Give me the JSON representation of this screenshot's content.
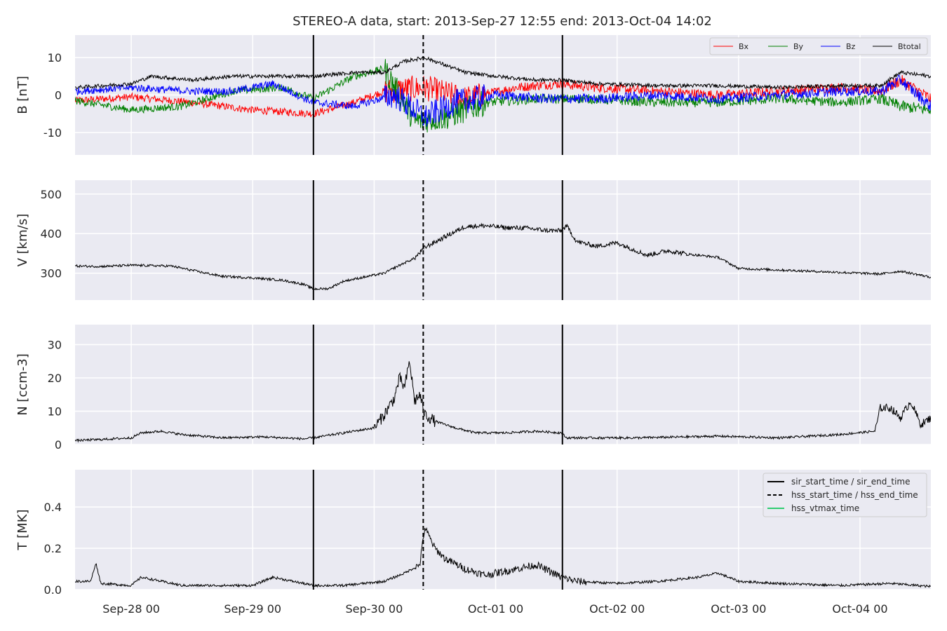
{
  "chart_data": {
    "type": "line",
    "title": "STEREO-A data, start: 2013-Sep-27 12:55  end: 2013-Oct-04 14:02",
    "x_ticks": [
      "Sep-28 00",
      "Sep-29 00",
      "Sep-30 00",
      "Oct-01 00",
      "Oct-02 00",
      "Oct-03 00",
      "Oct-04 00"
    ],
    "x_range_hours": [
      -11.1,
      158.0
    ],
    "events": {
      "sir_start_time": 36.0,
      "hss_start_time": 57.7,
      "sir_end_time": 85.2
    },
    "event_legend": [
      {
        "label": "sir_start_time / sir_end_time",
        "style": "solid",
        "color": "#000000"
      },
      {
        "label": "hss_start_time / hss_end_time",
        "style": "dashed",
        "color": "#000000"
      },
      {
        "label": "hss_vtmax_time",
        "style": "solid",
        "color": "#2ecc71"
      }
    ],
    "panels": [
      {
        "ylabel": "B [nT]",
        "ylim": [
          -16,
          16
        ],
        "yticks": [
          -10,
          0,
          10
        ],
        "series": [
          {
            "name": "Bx",
            "color": "#ff0000",
            "points": [
              [
                -11,
                -1.5
              ],
              [
                0,
                -0.5
              ],
              [
                12,
                -2
              ],
              [
                24,
                -4
              ],
              [
                36,
                -5
              ],
              [
                44,
                -2
              ],
              [
                50,
                1
              ],
              [
                58,
                2
              ],
              [
                66,
                -1
              ],
              [
                76,
                2
              ],
              [
                84,
                3
              ],
              [
                92,
                2
              ],
              [
                104,
                1
              ],
              [
                116,
                0
              ],
              [
                128,
                1
              ],
              [
                140,
                2
              ],
              [
                148,
                1
              ],
              [
                152,
                4
              ],
              [
                158,
                -1
              ]
            ]
          },
          {
            "name": "By",
            "color": "#008000",
            "points": [
              [
                -11,
                -1.5
              ],
              [
                0,
                -4
              ],
              [
                10,
                -3
              ],
              [
                20,
                1
              ],
              [
                30,
                2
              ],
              [
                36,
                -1
              ],
              [
                44,
                5
              ],
              [
                50,
                7
              ],
              [
                56,
                -7
              ],
              [
                62,
                -6
              ],
              [
                70,
                -2
              ],
              [
                80,
                -1
              ],
              [
                90,
                -1
              ],
              [
                104,
                -2
              ],
              [
                116,
                -2
              ],
              [
                128,
                -1
              ],
              [
                140,
                -2
              ],
              [
                148,
                -1
              ],
              [
                152,
                -3
              ],
              [
                158,
                -4
              ]
            ]
          },
          {
            "name": "Bz",
            "color": "#0000ff",
            "points": [
              [
                -11,
                1
              ],
              [
                0,
                2
              ],
              [
                12,
                1
              ],
              [
                20,
                1
              ],
              [
                28,
                3
              ],
              [
                36,
                -2
              ],
              [
                44,
                -3
              ],
              [
                52,
                0
              ],
              [
                58,
                -6
              ],
              [
                64,
                -2
              ],
              [
                72,
                0
              ],
              [
                82,
                -1
              ],
              [
                92,
                -1
              ],
              [
                104,
                0
              ],
              [
                116,
                -1
              ],
              [
                128,
                0
              ],
              [
                140,
                1
              ],
              [
                148,
                1
              ],
              [
                152,
                4
              ],
              [
                158,
                -3
              ]
            ]
          },
          {
            "name": "Btotal",
            "color": "#000000",
            "points": [
              [
                -11,
                2
              ],
              [
                0,
                3
              ],
              [
                4,
                5
              ],
              [
                12,
                4
              ],
              [
                20,
                5
              ],
              [
                30,
                5
              ],
              [
                36,
                5
              ],
              [
                44,
                6
              ],
              [
                50,
                6
              ],
              [
                54,
                9
              ],
              [
                58,
                10
              ],
              [
                62,
                8
              ],
              [
                66,
                6
              ],
              [
                72,
                5
              ],
              [
                80,
                4
              ],
              [
                85,
                4
              ],
              [
                92,
                3
              ],
              [
                104,
                2.5
              ],
              [
                116,
                2.5
              ],
              [
                128,
                2
              ],
              [
                140,
                2.5
              ],
              [
                148,
                2.5
              ],
              [
                152,
                6
              ],
              [
                158,
                5
              ]
            ]
          }
        ]
      },
      {
        "ylabel": "V [km/s]",
        "ylim": [
          232,
          535
        ],
        "yticks": [
          300,
          400,
          500
        ],
        "series": [
          {
            "name": "V",
            "color": "#000000",
            "points": [
              [
                -11,
                318
              ],
              [
                -6,
                317
              ],
              [
                0,
                320
              ],
              [
                8,
                318
              ],
              [
                14,
                302
              ],
              [
                18,
                292
              ],
              [
                24,
                288
              ],
              [
                30,
                282
              ],
              [
                34,
                272
              ],
              [
                36,
                260
              ],
              [
                39,
                261
              ],
              [
                42,
                280
              ],
              [
                46,
                290
              ],
              [
                50,
                300
              ],
              [
                53,
                320
              ],
              [
                56,
                338
              ],
              [
                58,
                365
              ],
              [
                62,
                392
              ],
              [
                66,
                418
              ],
              [
                70,
                420
              ],
              [
                74,
                415
              ],
              [
                78,
                414
              ],
              [
                82,
                408
              ],
              [
                85,
                407
              ],
              [
                86,
                420
              ],
              [
                88,
                380
              ],
              [
                92,
                368
              ],
              [
                96,
                377
              ],
              [
                102,
                345
              ],
              [
                106,
                357
              ],
              [
                110,
                348
              ],
              [
                116,
                340
              ],
              [
                120,
                312
              ],
              [
                124,
                310
              ],
              [
                132,
                306
              ],
              [
                140,
                302
              ],
              [
                148,
                298
              ],
              [
                152,
                305
              ],
              [
                158,
                290
              ]
            ]
          }
        ]
      },
      {
        "ylabel": "N [ccm-3]",
        "ylim": [
          0,
          36
        ],
        "yticks": [
          0,
          10,
          20,
          30
        ],
        "series": [
          {
            "name": "N",
            "color": "#000000",
            "points": [
              [
                -11,
                1.2
              ],
              [
                -6,
                1.5
              ],
              [
                0,
                2
              ],
              [
                2,
                3.5
              ],
              [
                6,
                4
              ],
              [
                10,
                3
              ],
              [
                18,
                2
              ],
              [
                26,
                2.3
              ],
              [
                34,
                1.7
              ],
              [
                36,
                2
              ],
              [
                40,
                3
              ],
              [
                44,
                4
              ],
              [
                48,
                5
              ],
              [
                50,
                9
              ],
              [
                52,
                14
              ],
              [
                53,
                20
              ],
              [
                54,
                17
              ],
              [
                55,
                25
              ],
              [
                56,
                13
              ],
              [
                57,
                15
              ],
              [
                58,
                9
              ],
              [
                60,
                7
              ],
              [
                64,
                5
              ],
              [
                68,
                3.5
              ],
              [
                74,
                3.5
              ],
              [
                80,
                4
              ],
              [
                85,
                3.5
              ],
              [
                86,
                2
              ],
              [
                100,
                2
              ],
              [
                116,
                2.5
              ],
              [
                128,
                2
              ],
              [
                140,
                3
              ],
              [
                147,
                4
              ],
              [
                148,
                11
              ],
              [
                150,
                11
              ],
              [
                152,
                8
              ],
              [
                154,
                13
              ],
              [
                156,
                6
              ],
              [
                158,
                8
              ]
            ]
          }
        ]
      },
      {
        "ylabel": "T [MK]",
        "ylim": [
          0,
          0.58
        ],
        "yticks": [
          0.0,
          0.2,
          0.4
        ],
        "series": [
          {
            "name": "T",
            "color": "#000000",
            "points": [
              [
                -11,
                0.04
              ],
              [
                -8,
                0.04
              ],
              [
                -7,
                0.13
              ],
              [
                -6,
                0.03
              ],
              [
                0,
                0.02
              ],
              [
                2,
                0.06
              ],
              [
                6,
                0.04
              ],
              [
                10,
                0.02
              ],
              [
                24,
                0.02
              ],
              [
                28,
                0.06
              ],
              [
                32,
                0.04
              ],
              [
                36,
                0.02
              ],
              [
                42,
                0.02
              ],
              [
                50,
                0.04
              ],
              [
                54,
                0.08
              ],
              [
                57,
                0.12
              ],
              [
                58,
                0.3
              ],
              [
                60,
                0.2
              ],
              [
                62,
                0.15
              ],
              [
                66,
                0.1
              ],
              [
                70,
                0.07
              ],
              [
                76,
                0.1
              ],
              [
                80,
                0.12
              ],
              [
                85,
                0.06
              ],
              [
                88,
                0.04
              ],
              [
                96,
                0.03
              ],
              [
                104,
                0.04
              ],
              [
                112,
                0.06
              ],
              [
                116,
                0.08
              ],
              [
                120,
                0.04
              ],
              [
                128,
                0.03
              ],
              [
                140,
                0.02
              ],
              [
                150,
                0.03
              ],
              [
                158,
                0.015
              ]
            ]
          }
        ]
      }
    ]
  }
}
